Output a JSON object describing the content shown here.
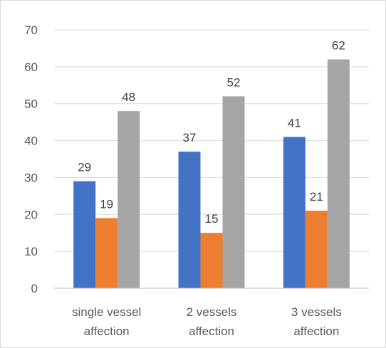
{
  "chart_data": {
    "type": "bar",
    "categories": [
      [
        "single vessel",
        "affection"
      ],
      [
        "2 vessels",
        "affection"
      ],
      [
        "3 vessels",
        "affection"
      ]
    ],
    "series": [
      {
        "values": [
          29,
          37,
          41
        ],
        "color": "#4472C4"
      },
      {
        "values": [
          19,
          15,
          21
        ],
        "color": "#ED7D31"
      },
      {
        "values": [
          48,
          52,
          62
        ],
        "color": "#A5A5A5"
      }
    ],
    "ylim": [
      0,
      70
    ],
    "yticks": [
      0,
      10,
      20,
      30,
      40,
      50,
      60,
      70
    ],
    "grid": true,
    "data_labels": true,
    "legend": "none"
  }
}
